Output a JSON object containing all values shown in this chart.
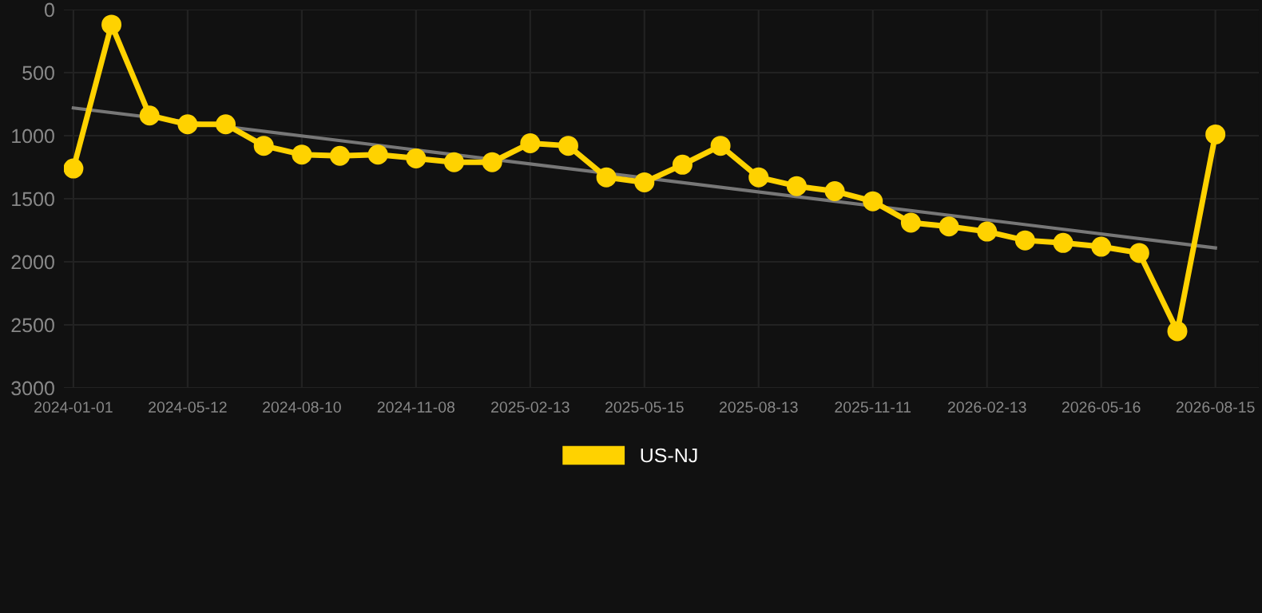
{
  "chart_data": {
    "type": "line",
    "categories": [
      "2024-01-01",
      null,
      null,
      "2024-05-12",
      null,
      null,
      "2024-08-10",
      null,
      null,
      "2024-11-08",
      null,
      null,
      "2025-02-13",
      null,
      null,
      "2025-05-15",
      null,
      null,
      "2025-08-13",
      null,
      null,
      "2025-11-11",
      null,
      null,
      "2026-02-13",
      null,
      null,
      "2026-05-16",
      null,
      null,
      "2026-08-15"
    ],
    "series": [
      {
        "name": "US-NJ",
        "color": "#ffd200",
        "marker": "circle",
        "values": [
          1260,
          120,
          840,
          910,
          910,
          1080,
          1150,
          1160,
          1150,
          1180,
          1210,
          1210,
          1060,
          1080,
          1330,
          1370,
          1230,
          1080,
          1330,
          1400,
          1440,
          1520,
          1690,
          1720,
          1760,
          1830,
          1850,
          1880,
          1930,
          2550,
          990
        ]
      },
      {
        "type": "line",
        "color": "#777777",
        "marker": "none",
        "values": [
          780,
          null,
          null,
          null,
          null,
          null,
          null,
          null,
          null,
          null,
          null,
          null,
          null,
          null,
          null,
          null,
          null,
          null,
          null,
          null,
          null,
          null,
          null,
          null,
          null,
          null,
          null,
          null,
          null,
          null,
          1890
        ]
      }
    ],
    "ylim": [
      3000,
      0
    ],
    "yticks": [
      0,
      500,
      1000,
      1500,
      2000,
      2500,
      3000
    ],
    "grid": true,
    "legend": "bottom",
    "line_style": "solid"
  }
}
